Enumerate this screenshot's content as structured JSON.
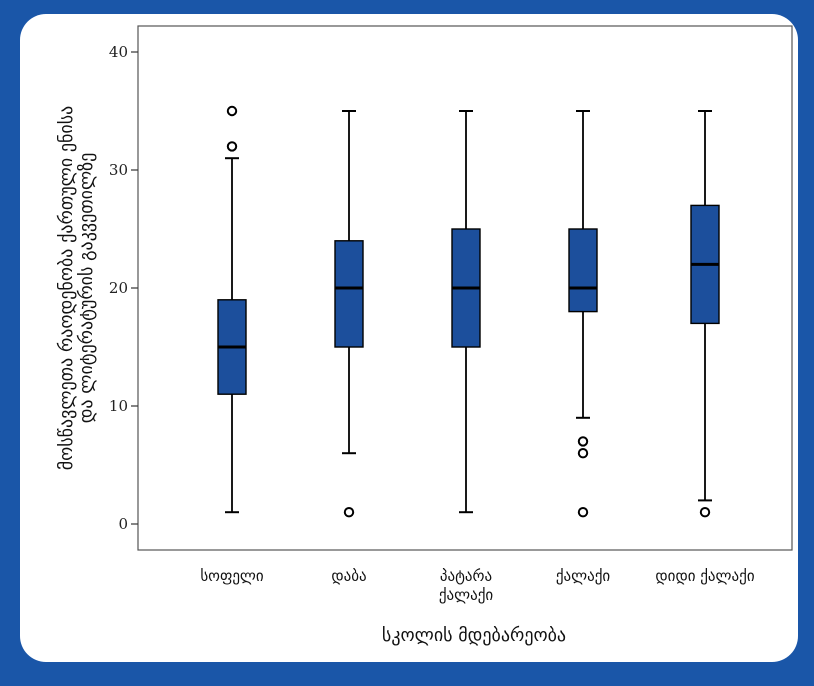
{
  "chart_data": {
    "type": "box",
    "title": "",
    "xlabel": "სკოლის მდებარეობა",
    "ylabel_lines": [
      "მოსწავლეთა რაოდენობა ქართული ენისა",
      "და ლიტერატურის გაკვეთილზე"
    ],
    "ylim": [
      -2,
      42
    ],
    "yticks": [
      0,
      10,
      20,
      30,
      40
    ],
    "box_color": "#1c4f9c",
    "categories": [
      {
        "label_lines": [
          "სოფელი"
        ],
        "min": 1,
        "q1": 11,
        "median": 15,
        "q3": 19,
        "max": 31,
        "outliers": [
          32,
          35
        ]
      },
      {
        "label_lines": [
          "დაბა"
        ],
        "min": 6,
        "q1": 15,
        "median": 20,
        "q3": 24,
        "max": 35,
        "outliers": [
          1
        ]
      },
      {
        "label_lines": [
          "პატარა",
          "ქალაქი"
        ],
        "min": 1,
        "q1": 15,
        "median": 20,
        "q3": 25,
        "max": 35,
        "outliers": []
      },
      {
        "label_lines": [
          "ქალაქი"
        ],
        "min": 9,
        "q1": 18,
        "median": 20,
        "q3": 25,
        "max": 35,
        "outliers": [
          1,
          6,
          7
        ]
      },
      {
        "label_lines": [
          "დიდი ქალაქი"
        ],
        "min": 2,
        "q1": 17,
        "median": 22,
        "q3": 27,
        "max": 35,
        "outliers": [
          1
        ]
      }
    ]
  }
}
